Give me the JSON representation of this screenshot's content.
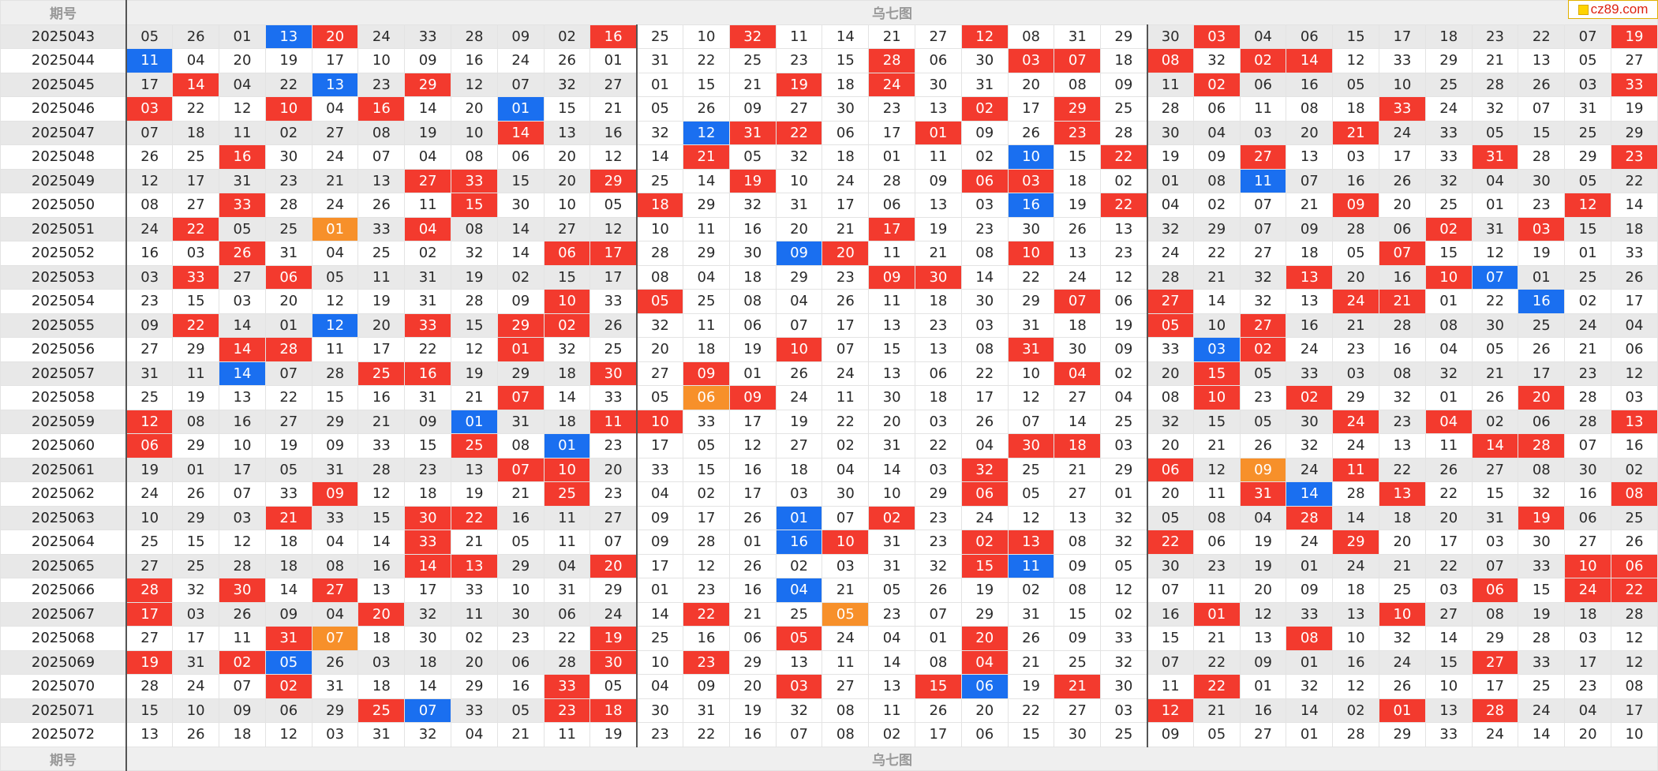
{
  "header": {
    "period_label": "期号",
    "title": "乌七图"
  },
  "footer": {
    "period_label": "期号",
    "title": "乌七图"
  },
  "logo": {
    "text": "cz89.com",
    "icon": "cz89-logo-icon"
  },
  "colors": {
    "red": "#f33a2e",
    "blue": "#1a6ff0",
    "orange": "#f7902a"
  },
  "highlight_codes": {
    "r": "red",
    "b": "blue",
    "o": "orange"
  },
  "rows": [
    {
      "period": "2025043",
      "nums": [
        "05",
        "26",
        "01",
        "13b",
        "20r",
        "24",
        "33",
        "28",
        "09",
        "02",
        "16r",
        "25",
        "10",
        "32r",
        "11",
        "14",
        "21",
        "27",
        "12r",
        "08",
        "31",
        "29",
        "30",
        "03r",
        "04",
        "06",
        "15",
        "17",
        "18",
        "23",
        "22",
        "07",
        "19r"
      ]
    },
    {
      "period": "2025044",
      "nums": [
        "11b",
        "04",
        "20",
        "19",
        "17",
        "10",
        "09",
        "16",
        "24",
        "26",
        "01",
        "31",
        "22",
        "25",
        "23",
        "15",
        "28r",
        "06",
        "30",
        "03r",
        "07r",
        "18",
        "08r",
        "32",
        "02r",
        "14r",
        "12",
        "33",
        "29",
        "21",
        "13",
        "05",
        "27"
      ]
    },
    {
      "period": "2025045",
      "nums": [
        "17",
        "14r",
        "04",
        "22",
        "13b",
        "23",
        "29r",
        "12",
        "07",
        "32",
        "27",
        "01",
        "15",
        "21",
        "19r",
        "18",
        "24r",
        "30",
        "31",
        "20",
        "08",
        "09",
        "11",
        "02r",
        "06",
        "16",
        "05",
        "10",
        "25",
        "28",
        "26",
        "03",
        "33r"
      ]
    },
    {
      "period": "2025046",
      "nums": [
        "03r",
        "22",
        "12",
        "10r",
        "04",
        "16r",
        "14",
        "20",
        "01b",
        "15",
        "21",
        "05",
        "26",
        "09",
        "27",
        "30",
        "23",
        "13",
        "02r",
        "17",
        "29r",
        "25",
        "28",
        "06",
        "11",
        "08",
        "18",
        "33r",
        "24",
        "32",
        "07",
        "31",
        "19"
      ]
    },
    {
      "period": "2025047",
      "nums": [
        "07",
        "18",
        "11",
        "02",
        "27",
        "08",
        "19",
        "10",
        "14r",
        "13",
        "16",
        "32",
        "12b",
        "31r",
        "22r",
        "06",
        "17",
        "01r",
        "09",
        "26",
        "23r",
        "28",
        "30",
        "04",
        "03",
        "20",
        "21r",
        "24",
        "33",
        "05",
        "15",
        "25",
        "29"
      ]
    },
    {
      "period": "2025048",
      "nums": [
        "26",
        "25",
        "16r",
        "30",
        "24",
        "07",
        "04",
        "08",
        "06",
        "20",
        "12",
        "14",
        "21r",
        "05",
        "32",
        "18",
        "01",
        "11",
        "02",
        "10b",
        "15",
        "22r",
        "19",
        "09",
        "27r",
        "13",
        "03",
        "17",
        "33",
        "31r",
        "28",
        "29",
        "23r"
      ]
    },
    {
      "period": "2025049",
      "nums": [
        "12",
        "17",
        "31",
        "23",
        "21",
        "13",
        "27r",
        "33r",
        "15",
        "20",
        "29r",
        "25",
        "14",
        "19r",
        "10",
        "24",
        "28",
        "09",
        "06r",
        "03r",
        "18",
        "02",
        "01",
        "08",
        "11b",
        "07",
        "16",
        "26",
        "32",
        "04",
        "30",
        "05",
        "22"
      ]
    },
    {
      "period": "2025050",
      "nums": [
        "08",
        "27",
        "33r",
        "28",
        "24",
        "26",
        "11",
        "15r",
        "30",
        "10",
        "05",
        "18r",
        "29",
        "32",
        "31",
        "17",
        "06",
        "13",
        "03",
        "16b",
        "19",
        "22r",
        "04",
        "02",
        "07",
        "21",
        "09r",
        "20",
        "25",
        "01",
        "23",
        "12r",
        "14"
      ]
    },
    {
      "period": "2025051",
      "nums": [
        "24",
        "22r",
        "05",
        "25",
        "01o",
        "33",
        "04r",
        "08",
        "14",
        "27",
        "12",
        "10",
        "11",
        "16",
        "20",
        "21",
        "17r",
        "19",
        "23",
        "30",
        "26",
        "13",
        "32",
        "29",
        "07",
        "09",
        "28",
        "06",
        "02r",
        "31",
        "03r",
        "15",
        "18"
      ]
    },
    {
      "period": "2025052",
      "nums": [
        "16",
        "03",
        "26r",
        "31",
        "04",
        "25",
        "02",
        "32",
        "14",
        "06r",
        "17r",
        "28",
        "29",
        "30",
        "09b",
        "20r",
        "11",
        "21",
        "08",
        "10r",
        "13",
        "23",
        "24",
        "22",
        "27",
        "18",
        "05",
        "07r",
        "15",
        "12",
        "19",
        "01",
        "33"
      ]
    },
    {
      "period": "2025053",
      "nums": [
        "03",
        "33r",
        "27",
        "06r",
        "05",
        "11",
        "31",
        "19",
        "02",
        "15",
        "17",
        "08",
        "04",
        "18",
        "29",
        "23",
        "09r",
        "30r",
        "14",
        "22",
        "24",
        "12",
        "28",
        "21",
        "32",
        "13r",
        "20",
        "16",
        "10r",
        "07b",
        "01",
        "25",
        "26"
      ]
    },
    {
      "period": "2025054",
      "nums": [
        "23",
        "15",
        "03",
        "20",
        "12",
        "19",
        "31",
        "28",
        "09",
        "10r",
        "33",
        "05r",
        "25",
        "08",
        "04",
        "26",
        "11",
        "18",
        "30",
        "29",
        "07r",
        "06",
        "27r",
        "14",
        "32",
        "13",
        "24r",
        "21r",
        "01",
        "22",
        "16b",
        "02",
        "17"
      ]
    },
    {
      "period": "2025055",
      "nums": [
        "09",
        "22r",
        "14",
        "01",
        "12b",
        "20",
        "33r",
        "15",
        "29r",
        "02r",
        "26",
        "32",
        "11",
        "06",
        "07",
        "17",
        "13",
        "23",
        "03",
        "31",
        "18",
        "19",
        "05r",
        "10",
        "27r",
        "16",
        "21",
        "28",
        "08",
        "30",
        "25",
        "24",
        "04"
      ]
    },
    {
      "period": "2025056",
      "nums": [
        "27",
        "29",
        "14r",
        "28r",
        "11",
        "17",
        "22",
        "12",
        "01r",
        "32",
        "25",
        "20",
        "18",
        "19",
        "10r",
        "07",
        "15",
        "13",
        "08",
        "31r",
        "30",
        "09",
        "33",
        "03b",
        "02r",
        "24",
        "23",
        "16",
        "04",
        "05",
        "26",
        "21",
        "06"
      ]
    },
    {
      "period": "2025057",
      "nums": [
        "31",
        "11",
        "14b",
        "07",
        "28",
        "25r",
        "16r",
        "19",
        "29",
        "18",
        "30r",
        "27",
        "09r",
        "01",
        "26",
        "24",
        "13",
        "06",
        "22",
        "10",
        "04r",
        "02",
        "20",
        "15r",
        "05",
        "33",
        "03",
        "08",
        "32",
        "21",
        "17",
        "23",
        "12"
      ]
    },
    {
      "period": "2025058",
      "nums": [
        "25",
        "19",
        "13",
        "22",
        "15",
        "16",
        "31",
        "21",
        "07r",
        "14",
        "33",
        "05",
        "06o",
        "09r",
        "24",
        "11",
        "30",
        "18",
        "17",
        "12",
        "27",
        "04",
        "08",
        "10r",
        "23",
        "02r",
        "29",
        "32",
        "01",
        "26",
        "20r",
        "28",
        "03"
      ]
    },
    {
      "period": "2025059",
      "nums": [
        "12r",
        "08",
        "16",
        "27",
        "29",
        "21",
        "09",
        "01b",
        "31",
        "18",
        "11r",
        "10r",
        "33",
        "17",
        "19",
        "22",
        "20",
        "03",
        "26",
        "07",
        "14",
        "25",
        "32",
        "15",
        "05",
        "30",
        "24r",
        "23",
        "04r",
        "02",
        "06",
        "28",
        "13r"
      ]
    },
    {
      "period": "2025060",
      "nums": [
        "06r",
        "29",
        "10",
        "19",
        "09",
        "33",
        "15",
        "25r",
        "08",
        "01b",
        "23",
        "17",
        "05",
        "12",
        "27",
        "02",
        "31",
        "22",
        "04",
        "30r",
        "18r",
        "03",
        "20",
        "21",
        "26",
        "32",
        "24",
        "13",
        "11",
        "14r",
        "28r",
        "07",
        "16"
      ]
    },
    {
      "period": "2025061",
      "nums": [
        "19",
        "01",
        "17",
        "05",
        "31",
        "28",
        "23",
        "13",
        "07r",
        "10r",
        "20",
        "33",
        "15",
        "16",
        "18",
        "04",
        "14",
        "03",
        "32r",
        "25",
        "21",
        "29",
        "06r",
        "12",
        "09o",
        "24",
        "11r",
        "22",
        "26",
        "27",
        "08",
        "30",
        "02"
      ]
    },
    {
      "period": "2025062",
      "nums": [
        "24",
        "26",
        "07",
        "33",
        "09r",
        "12",
        "18",
        "19",
        "21",
        "25r",
        "23",
        "04",
        "02",
        "17",
        "03",
        "30",
        "10",
        "29",
        "06r",
        "05",
        "27",
        "01",
        "20",
        "11",
        "31r",
        "14b",
        "28",
        "13r",
        "22",
        "15",
        "32",
        "16",
        "08r"
      ]
    },
    {
      "period": "2025063",
      "nums": [
        "10",
        "29",
        "03",
        "21r",
        "33",
        "15",
        "30r",
        "22r",
        "16",
        "11",
        "27",
        "09",
        "17",
        "26",
        "01b",
        "07",
        "02r",
        "23",
        "24",
        "12",
        "13",
        "32",
        "05",
        "08",
        "04",
        "28r",
        "14",
        "18",
        "20",
        "31",
        "19r",
        "06",
        "25"
      ]
    },
    {
      "period": "2025064",
      "nums": [
        "25",
        "15",
        "12",
        "18",
        "04",
        "14",
        "33r",
        "21",
        "05",
        "11",
        "07",
        "09",
        "28",
        "01",
        "16b",
        "10r",
        "31",
        "23",
        "02r",
        "13r",
        "08",
        "32",
        "22r",
        "06",
        "19",
        "24",
        "29r",
        "20",
        "17",
        "03",
        "30",
        "27",
        "26"
      ]
    },
    {
      "period": "2025065",
      "nums": [
        "27",
        "25",
        "28",
        "18",
        "08",
        "16",
        "14r",
        "13r",
        "29",
        "04",
        "20r",
        "17",
        "12",
        "26",
        "02",
        "03",
        "31",
        "32",
        "15r",
        "11b",
        "09",
        "05",
        "30",
        "23",
        "19",
        "01",
        "24",
        "21",
        "22",
        "07",
        "33",
        "10r",
        "06r"
      ]
    },
    {
      "period": "2025066",
      "nums": [
        "28r",
        "32",
        "30r",
        "14",
        "27r",
        "13",
        "17",
        "33",
        "10",
        "31",
        "29",
        "01",
        "23",
        "16",
        "04b",
        "21",
        "05",
        "26",
        "19",
        "02",
        "08",
        "12",
        "07",
        "11",
        "20",
        "09",
        "18",
        "25",
        "03",
        "06r",
        "15",
        "24r",
        "22r"
      ]
    },
    {
      "period": "2025067",
      "nums": [
        "17r",
        "03",
        "26",
        "09",
        "04",
        "20r",
        "32",
        "11",
        "30",
        "06",
        "24",
        "14",
        "22r",
        "21",
        "25",
        "05o",
        "23",
        "07",
        "29",
        "31",
        "15",
        "02",
        "16",
        "01r",
        "12",
        "33",
        "13",
        "10r",
        "27",
        "08",
        "19",
        "18",
        "28"
      ]
    },
    {
      "period": "2025068",
      "nums": [
        "27",
        "17",
        "11",
        "31r",
        "07o",
        "18",
        "30",
        "02",
        "23",
        "22",
        "19r",
        "25",
        "16",
        "06",
        "05r",
        "24",
        "04",
        "01",
        "20r",
        "26",
        "09",
        "33",
        "15",
        "21",
        "13",
        "08r",
        "10",
        "32",
        "14",
        "29",
        "28",
        "03",
        "12"
      ]
    },
    {
      "period": "2025069",
      "nums": [
        "19r",
        "31",
        "02r",
        "05b",
        "26",
        "03",
        "18",
        "20",
        "06",
        "28",
        "30r",
        "10",
        "23r",
        "29",
        "13",
        "11",
        "14",
        "08",
        "04r",
        "21",
        "25",
        "32",
        "07",
        "22",
        "09",
        "01",
        "16",
        "24",
        "15",
        "27r",
        "33",
        "17",
        "12"
      ]
    },
    {
      "period": "2025070",
      "nums": [
        "28",
        "24",
        "07",
        "02r",
        "31",
        "18",
        "14",
        "29",
        "16",
        "33r",
        "05",
        "04",
        "09",
        "20",
        "03r",
        "27",
        "13",
        "15r",
        "06b",
        "19",
        "21r",
        "30",
        "11",
        "22r",
        "01",
        "32",
        "12",
        "26",
        "10",
        "17",
        "25",
        "23",
        "08"
      ]
    },
    {
      "period": "2025071",
      "nums": [
        "15",
        "10",
        "09",
        "06",
        "29",
        "25r",
        "07b",
        "33",
        "05",
        "23r",
        "18r",
        "30",
        "31",
        "19",
        "32",
        "08",
        "11",
        "26",
        "20",
        "22",
        "27",
        "03",
        "12r",
        "21",
        "16",
        "14",
        "02",
        "01r",
        "13",
        "28r",
        "24",
        "04",
        "17"
      ]
    },
    {
      "period": "2025072",
      "nums": [
        "13",
        "26",
        "18",
        "12",
        "03",
        "31",
        "32",
        "04",
        "21",
        "11",
        "19",
        "23",
        "22",
        "16",
        "07",
        "08",
        "02",
        "17",
        "06",
        "15",
        "30",
        "25",
        "09",
        "05",
        "27",
        "01",
        "28",
        "29",
        "33",
        "24",
        "14",
        "20",
        "10"
      ]
    }
  ]
}
